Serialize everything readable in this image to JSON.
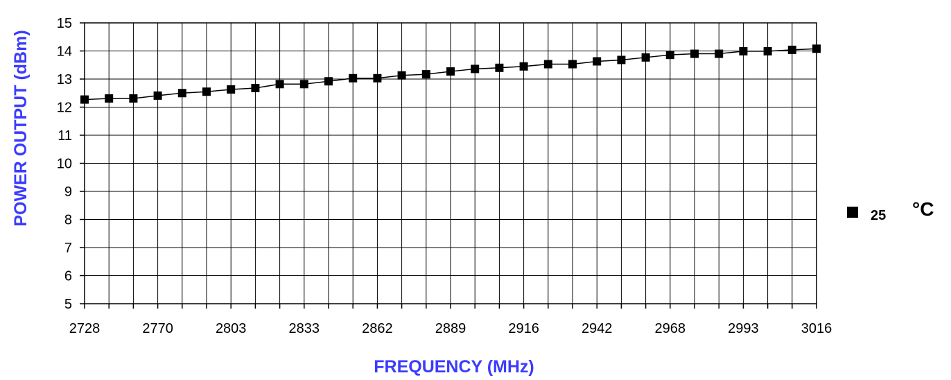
{
  "chart_data": {
    "type": "line",
    "xlabel": "FREQUENCY (MHz)",
    "ylabel": "POWER OUTPUT (dBm)",
    "ylim": [
      5,
      15
    ],
    "yticks": [
      "5",
      "6",
      "7",
      "8",
      "9",
      "10",
      "11",
      "12",
      "13",
      "14",
      "15"
    ],
    "xtick_labels": [
      "2728",
      "2770",
      "2803",
      "2833",
      "2862",
      "2889",
      "2916",
      "2942",
      "2968",
      "2993",
      "3016"
    ],
    "grid": true,
    "legend_position": "right",
    "series": [
      {
        "name": "25",
        "unit": "°C",
        "color": "#000000",
        "marker": "square",
        "values": [
          12.27,
          12.31,
          12.31,
          12.41,
          12.5,
          12.55,
          12.63,
          12.68,
          12.82,
          12.82,
          12.92,
          13.03,
          13.03,
          13.13,
          13.17,
          13.27,
          13.36,
          13.4,
          13.45,
          13.53,
          13.53,
          13.63,
          13.68,
          13.77,
          13.86,
          13.9,
          13.9,
          13.99,
          13.99,
          14.04,
          14.08
        ]
      }
    ]
  },
  "colors": {
    "axis_title": "#3b3bff",
    "line": "#000000",
    "grid": "#000000"
  }
}
